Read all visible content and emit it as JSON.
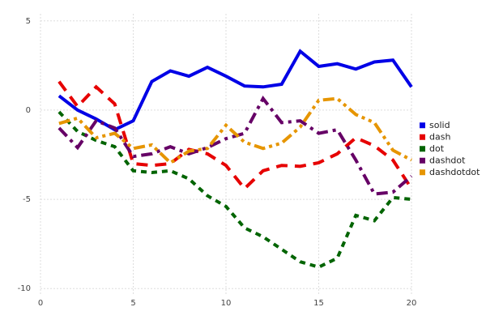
{
  "chart_data": {
    "type": "line",
    "x": [
      1,
      2,
      3,
      4,
      5,
      6,
      7,
      8,
      9,
      10,
      11,
      12,
      13,
      14,
      15,
      16,
      17,
      18,
      19,
      20
    ],
    "series": [
      {
        "name": "solid",
        "color": "#0000e6",
        "linestyle": "solid",
        "values": [
          0.8,
          0,
          -0.5,
          -1.1,
          -0.6,
          1.6,
          2.2,
          1.9,
          2.4,
          1.9,
          1.35,
          1.3,
          1.45,
          3.3,
          2.45,
          2.6,
          2.3,
          2.7,
          2.8,
          1.3
        ]
      },
      {
        "name": "dash",
        "color": "#e60000",
        "linestyle": "dash",
        "values": [
          1.6,
          0.2,
          1.3,
          0.35,
          -3.0,
          -3.1,
          -3.0,
          -2.2,
          -2.45,
          -3.1,
          -4.4,
          -3.4,
          -3.1,
          -3.15,
          -2.95,
          -2.45,
          -1.55,
          -2.0,
          -2.8,
          -4.4
        ]
      },
      {
        "name": "dot",
        "color": "#006400",
        "linestyle": "dot",
        "values": [
          -0.1,
          -1.2,
          -1.7,
          -2.05,
          -3.4,
          -3.5,
          -3.4,
          -3.85,
          -4.8,
          -5.4,
          -6.6,
          -7.1,
          -7.8,
          -8.5,
          -8.8,
          -8.3,
          -5.9,
          -6.2,
          -4.9,
          -5.0
        ]
      },
      {
        "name": "dashdot",
        "color": "#660066",
        "linestyle": "dashdot",
        "values": [
          -1.0,
          -2.1,
          -0.6,
          -1.0,
          -2.6,
          -2.45,
          -2.05,
          -2.45,
          -2.1,
          -1.6,
          -1.3,
          0.65,
          -0.7,
          -0.6,
          -1.3,
          -1.1,
          -2.8,
          -4.7,
          -4.6,
          -3.7
        ]
      },
      {
        "name": "dashdotdot",
        "color": "#e69500",
        "linestyle": "dashdotdot",
        "values": [
          -0.75,
          -0.45,
          -1.55,
          -1.3,
          -2.15,
          -1.95,
          -2.95,
          -2.3,
          -2.15,
          -0.85,
          -1.8,
          -2.15,
          -1.85,
          -0.95,
          0.55,
          0.65,
          -0.25,
          -0.7,
          -2.25,
          -2.8
        ]
      }
    ],
    "xlim": [
      0,
      20
    ],
    "xticks": [
      0,
      5,
      10,
      15,
      20
    ],
    "ylim": [
      -10.4,
      5.4
    ],
    "yticks": [
      5,
      0,
      -5,
      -10
    ],
    "grid": true,
    "legend": "right"
  }
}
